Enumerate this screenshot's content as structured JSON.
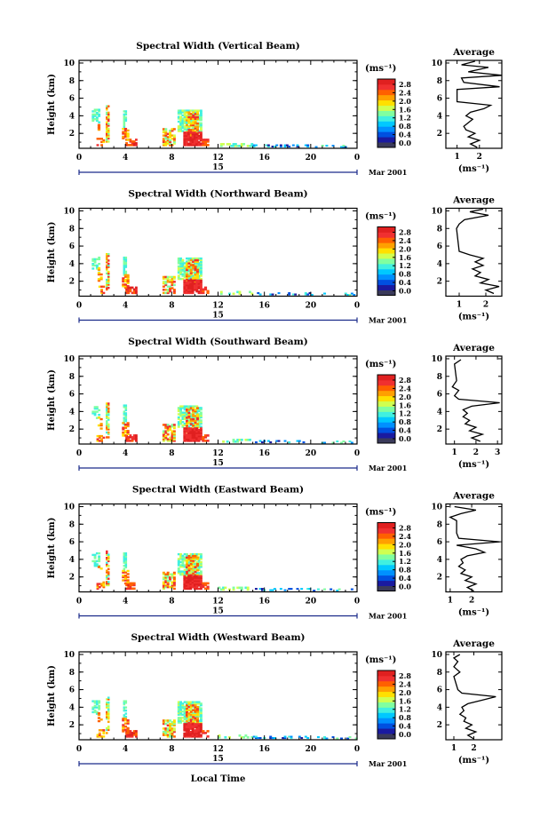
{
  "common": {
    "ylabel": "Height (km)",
    "date_label": "Mar 2001",
    "day_label": "15",
    "colorbar_unit": "(ms⁻¹)",
    "colorbar_ticks": [
      "2.8",
      "2.4",
      "2.0",
      "1.6",
      "1.2",
      "0.8",
      "0.4",
      "0.0"
    ],
    "colorbar_colors": [
      "#3a3a5a",
      "#1a1aa0",
      "#0050e0",
      "#0090ff",
      "#00c8ff",
      "#40f0e0",
      "#80ffa0",
      "#d0ff50",
      "#ffe000",
      "#ffa000",
      "#ff6000",
      "#f03030",
      "#e02020"
    ],
    "avg_title": "Average",
    "avg_unit": "(ms⁻¹)",
    "xlabel": "Local Time"
  },
  "chart_data": [
    {
      "type": "heatmap",
      "title": "Spectral Width (Vertical Beam)",
      "x_ticks": [
        "0",
        "4",
        "8",
        "12",
        "16",
        "20",
        "0"
      ],
      "y_ticks": [
        "10",
        "8",
        "6",
        "4",
        "2"
      ],
      "xlim": [
        0,
        24
      ],
      "ylim": [
        0.3,
        10.3
      ],
      "avg_xticks": [
        "1",
        "2"
      ],
      "avg_xlim": [
        0.5,
        3.0
      ],
      "avg_profile": [
        [
          0.4,
          1.9
        ],
        [
          0.8,
          1.6
        ],
        [
          1.2,
          2.0
        ],
        [
          1.6,
          1.5
        ],
        [
          2.0,
          1.8
        ],
        [
          2.4,
          1.4
        ],
        [
          2.8,
          1.3
        ],
        [
          3.2,
          1.5
        ],
        [
          3.6,
          1.7
        ],
        [
          4.0,
          1.4
        ],
        [
          4.4,
          1.6
        ],
        [
          4.8,
          2.2
        ],
        [
          5.2,
          2.5
        ],
        [
          5.6,
          1.0
        ],
        [
          6.0,
          1.0
        ],
        [
          7.0,
          1.0
        ],
        [
          7.3,
          2.9
        ],
        [
          7.8,
          1.3
        ],
        [
          8.3,
          1.2
        ],
        [
          8.6,
          3.0
        ],
        [
          9.0,
          1.5
        ],
        [
          9.5,
          2.4
        ],
        [
          9.8,
          1.2
        ],
        [
          10.2,
          1.8
        ]
      ]
    },
    {
      "type": "heatmap",
      "title": "Spectral Width (Northward Beam)",
      "x_ticks": [
        "0",
        "4",
        "8",
        "12",
        "16",
        "20",
        "0"
      ],
      "y_ticks": [
        "10",
        "8",
        "6",
        "4",
        "2"
      ],
      "xlim": [
        0,
        24
      ],
      "ylim": [
        0.3,
        10.3
      ],
      "avg_xticks": [
        "1",
        "2"
      ],
      "avg_xlim": [
        0.5,
        2.6
      ],
      "avg_profile": [
        [
          0.6,
          2.3
        ],
        [
          1.0,
          2.0
        ],
        [
          1.4,
          2.5
        ],
        [
          1.8,
          1.8
        ],
        [
          2.2,
          2.1
        ],
        [
          2.6,
          1.6
        ],
        [
          3.0,
          1.8
        ],
        [
          3.4,
          1.5
        ],
        [
          3.8,
          1.9
        ],
        [
          4.2,
          1.6
        ],
        [
          4.6,
          1.9
        ],
        [
          5.0,
          1.4
        ],
        [
          5.4,
          1.0
        ],
        [
          8.0,
          0.9
        ],
        [
          8.5,
          1.0
        ],
        [
          9.0,
          1.2
        ],
        [
          9.5,
          2.1
        ],
        [
          9.9,
          1.4
        ],
        [
          10.2,
          1.9
        ]
      ]
    },
    {
      "type": "heatmap",
      "title": "Spectral Width (Southward Beam)",
      "x_ticks": [
        "0",
        "4",
        "8",
        "12",
        "16",
        "20",
        "0"
      ],
      "y_ticks": [
        "10",
        "8",
        "6",
        "4",
        "2"
      ],
      "xlim": [
        0,
        24
      ],
      "ylim": [
        0.3,
        10.3
      ],
      "avg_xticks": [
        "1",
        "2",
        "3"
      ],
      "avg_xlim": [
        0.6,
        3.2
      ],
      "avg_profile": [
        [
          0.6,
          2.2
        ],
        [
          1.0,
          1.8
        ],
        [
          1.4,
          2.3
        ],
        [
          1.8,
          1.7
        ],
        [
          2.2,
          2.0
        ],
        [
          2.6,
          1.5
        ],
        [
          3.0,
          1.7
        ],
        [
          3.4,
          1.4
        ],
        [
          3.8,
          1.6
        ],
        [
          4.2,
          1.4
        ],
        [
          4.6,
          1.8
        ],
        [
          5.0,
          3.1
        ],
        [
          5.4,
          1.2
        ],
        [
          5.8,
          1.0
        ],
        [
          6.4,
          1.2
        ],
        [
          6.8,
          0.9
        ],
        [
          7.5,
          1.1
        ],
        [
          9.4,
          1.0
        ],
        [
          9.9,
          1.3
        ]
      ]
    },
    {
      "type": "heatmap",
      "title": "Spectral Width (Eastward Beam)",
      "x_ticks": [
        "0",
        "4",
        "8",
        "12",
        "16",
        "20",
        "0"
      ],
      "y_ticks": [
        "10",
        "8",
        "6",
        "4",
        "2"
      ],
      "xlim": [
        0,
        24
      ],
      "ylim": [
        0.3,
        10.3
      ],
      "avg_xticks": [
        "1",
        "2"
      ],
      "avg_xlim": [
        0.8,
        3.4
      ],
      "avg_profile": [
        [
          0.4,
          2.1
        ],
        [
          0.8,
          1.8
        ],
        [
          1.2,
          2.2
        ],
        [
          1.6,
          1.7
        ],
        [
          2.0,
          2.0
        ],
        [
          2.4,
          1.5
        ],
        [
          2.8,
          1.7
        ],
        [
          3.2,
          1.4
        ],
        [
          3.6,
          1.6
        ],
        [
          4.0,
          1.5
        ],
        [
          4.4,
          1.8
        ],
        [
          4.8,
          2.6
        ],
        [
          5.2,
          2.2
        ],
        [
          5.6,
          1.3
        ],
        [
          6.0,
          3.3
        ],
        [
          6.4,
          1.4
        ],
        [
          7.0,
          1.3
        ],
        [
          8.4,
          1.3
        ],
        [
          8.8,
          1.0
        ],
        [
          9.2,
          1.5
        ],
        [
          9.6,
          2.2
        ],
        [
          10.0,
          1.2
        ]
      ]
    },
    {
      "type": "heatmap",
      "title": "Spectral Width (Westward Beam)",
      "x_ticks": [
        "0",
        "4",
        "8",
        "12",
        "16",
        "20",
        "0"
      ],
      "y_ticks": [
        "10",
        "8",
        "6",
        "4",
        "2"
      ],
      "xlim": [
        0,
        24
      ],
      "ylim": [
        0.3,
        10.3
      ],
      "avg_xticks": [
        "1",
        "2"
      ],
      "avg_xlim": [
        0.6,
        3.4
      ],
      "avg_profile": [
        [
          0.4,
          2.0
        ],
        [
          0.8,
          1.7
        ],
        [
          1.2,
          2.1
        ],
        [
          1.6,
          1.6
        ],
        [
          2.0,
          1.9
        ],
        [
          2.4,
          1.5
        ],
        [
          2.8,
          1.6
        ],
        [
          3.2,
          1.3
        ],
        [
          3.6,
          1.5
        ],
        [
          4.0,
          1.4
        ],
        [
          4.4,
          1.7
        ],
        [
          4.8,
          2.4
        ],
        [
          5.2,
          3.1
        ],
        [
          5.6,
          1.4
        ],
        [
          6.0,
          1.2
        ],
        [
          7.5,
          1.0
        ],
        [
          8.0,
          1.3
        ],
        [
          8.6,
          1.0
        ],
        [
          9.2,
          1.2
        ],
        [
          9.6,
          1.0
        ],
        [
          10.0,
          1.3
        ]
      ]
    }
  ]
}
